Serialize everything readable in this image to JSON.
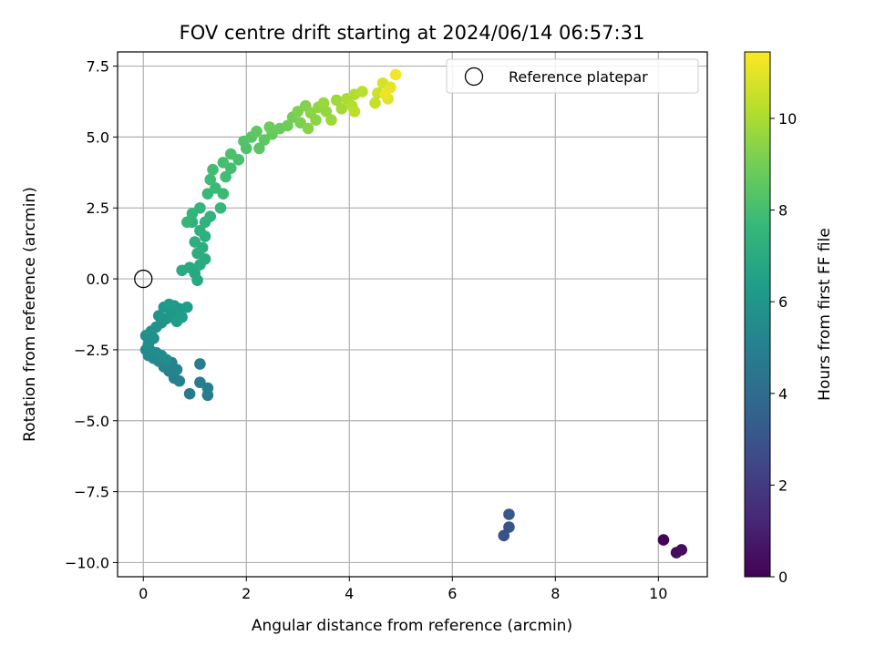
{
  "chart_data": {
    "type": "scatter",
    "title": "FOV centre drift starting at 2024/06/14 06:57:31",
    "xlabel": "Angular distance from reference (arcmin)",
    "ylabel": "Rotation from reference (arcmin)",
    "xlim": [
      -0.5,
      10.95
    ],
    "ylim": [
      -10.5,
      8.0
    ],
    "xticks": [
      0,
      2,
      4,
      6,
      8,
      10
    ],
    "xtick_labels": [
      "0",
      "2",
      "4",
      "6",
      "8",
      "10"
    ],
    "yticks": [
      7.5,
      5.0,
      2.5,
      0.0,
      -2.5,
      -5.0,
      -7.5,
      -10.0
    ],
    "ytick_labels": [
      "7.5",
      "5.0",
      "2.5",
      "0.0",
      "−2.5",
      "−5.0",
      "−7.5",
      "−10.0"
    ],
    "grid": true,
    "colormap": "viridis",
    "colorbar": {
      "label": "Hours from first FF file",
      "range": [
        0,
        11.45
      ],
      "ticks": [
        0,
        2,
        4,
        6,
        8,
        10
      ],
      "tick_labels": [
        "0",
        "2",
        "4",
        "6",
        "8",
        "10"
      ]
    },
    "legend": {
      "position": "upper right",
      "entries": [
        "Reference platepar"
      ]
    },
    "reference_point": {
      "x": 0.0,
      "y": 0.0,
      "label": "Reference platepar"
    },
    "points": [
      {
        "x": 10.1,
        "y": -9.2,
        "h": 0.1
      },
      {
        "x": 10.35,
        "y": -9.65,
        "h": 0.3
      },
      {
        "x": 10.45,
        "y": -9.55,
        "h": 0.4
      },
      {
        "x": 7.0,
        "y": -9.05,
        "h": 2.9
      },
      {
        "x": 7.1,
        "y": -8.75,
        "h": 3.0
      },
      {
        "x": 7.1,
        "y": -8.3,
        "h": 3.1
      },
      {
        "x": 0.9,
        "y": -4.05,
        "h": 4.7
      },
      {
        "x": 1.1,
        "y": -3.65,
        "h": 4.8
      },
      {
        "x": 1.25,
        "y": -4.1,
        "h": 4.8
      },
      {
        "x": 1.25,
        "y": -3.85,
        "h": 4.9
      },
      {
        "x": 1.1,
        "y": -3.0,
        "h": 4.9
      },
      {
        "x": 0.7,
        "y": -3.6,
        "h": 5.0
      },
      {
        "x": 0.6,
        "y": -3.5,
        "h": 5.0
      },
      {
        "x": 0.5,
        "y": -3.25,
        "h": 5.1
      },
      {
        "x": 0.55,
        "y": -2.95,
        "h": 5.1
      },
      {
        "x": 0.65,
        "y": -3.2,
        "h": 5.2
      },
      {
        "x": 0.4,
        "y": -3.1,
        "h": 5.2
      },
      {
        "x": 0.3,
        "y": -2.9,
        "h": 5.3
      },
      {
        "x": 0.2,
        "y": -2.8,
        "h": 5.3
      },
      {
        "x": 0.1,
        "y": -2.7,
        "h": 5.4
      },
      {
        "x": 0.05,
        "y": -2.5,
        "h": 5.4
      },
      {
        "x": 0.15,
        "y": -2.55,
        "h": 5.5
      },
      {
        "x": 0.25,
        "y": -2.6,
        "h": 5.5
      },
      {
        "x": 0.35,
        "y": -2.7,
        "h": 5.55
      },
      {
        "x": 0.45,
        "y": -2.85,
        "h": 5.6
      },
      {
        "x": 0.1,
        "y": -2.3,
        "h": 5.6
      },
      {
        "x": 0.2,
        "y": -2.1,
        "h": 5.65
      },
      {
        "x": 0.05,
        "y": -2.0,
        "h": 5.7
      },
      {
        "x": 0.15,
        "y": -1.85,
        "h": 5.75
      },
      {
        "x": 0.25,
        "y": -1.7,
        "h": 5.8
      },
      {
        "x": 0.35,
        "y": -1.55,
        "h": 5.85
      },
      {
        "x": 0.45,
        "y": -1.4,
        "h": 5.9
      },
      {
        "x": 0.3,
        "y": -1.3,
        "h": 5.95
      },
      {
        "x": 0.4,
        "y": -1.0,
        "h": 6.0
      },
      {
        "x": 0.55,
        "y": -1.2,
        "h": 6.05
      },
      {
        "x": 0.6,
        "y": -0.95,
        "h": 6.1
      },
      {
        "x": 0.7,
        "y": -1.05,
        "h": 6.15
      },
      {
        "x": 0.5,
        "y": -0.9,
        "h": 6.2
      },
      {
        "x": 0.75,
        "y": -1.35,
        "h": 6.25
      },
      {
        "x": 0.85,
        "y": -1.0,
        "h": 6.3
      },
      {
        "x": 0.65,
        "y": -1.5,
        "h": 6.3
      },
      {
        "x": 1.05,
        "y": -0.05,
        "h": 6.8
      },
      {
        "x": 1.0,
        "y": 0.2,
        "h": 6.85
      },
      {
        "x": 0.9,
        "y": 0.4,
        "h": 6.9
      },
      {
        "x": 0.75,
        "y": 0.3,
        "h": 6.95
      },
      {
        "x": 1.1,
        "y": 0.5,
        "h": 7.0
      },
      {
        "x": 1.2,
        "y": 0.7,
        "h": 7.05
      },
      {
        "x": 1.05,
        "y": 0.9,
        "h": 7.1
      },
      {
        "x": 1.15,
        "y": 1.1,
        "h": 7.15
      },
      {
        "x": 1.0,
        "y": 1.3,
        "h": 7.2
      },
      {
        "x": 1.2,
        "y": 1.5,
        "h": 7.25
      },
      {
        "x": 1.1,
        "y": 1.7,
        "h": 7.3
      },
      {
        "x": 0.95,
        "y": 2.0,
        "h": 7.35
      },
      {
        "x": 1.2,
        "y": 2.0,
        "h": 7.4
      },
      {
        "x": 1.3,
        "y": 2.2,
        "h": 7.45
      },
      {
        "x": 1.1,
        "y": 2.5,
        "h": 7.5
      },
      {
        "x": 0.95,
        "y": 2.3,
        "h": 7.55
      },
      {
        "x": 0.85,
        "y": 2.0,
        "h": 7.6
      },
      {
        "x": 1.5,
        "y": 2.5,
        "h": 7.65
      },
      {
        "x": 1.25,
        "y": 3.0,
        "h": 7.7
      },
      {
        "x": 1.4,
        "y": 3.2,
        "h": 7.75
      },
      {
        "x": 1.55,
        "y": 3.0,
        "h": 7.8
      },
      {
        "x": 1.3,
        "y": 3.5,
        "h": 7.85
      },
      {
        "x": 1.6,
        "y": 3.6,
        "h": 7.9
      },
      {
        "x": 1.35,
        "y": 3.85,
        "h": 7.95
      },
      {
        "x": 1.7,
        "y": 3.9,
        "h": 8.0
      },
      {
        "x": 1.55,
        "y": 4.1,
        "h": 8.05
      },
      {
        "x": 1.85,
        "y": 4.2,
        "h": 8.1
      },
      {
        "x": 1.7,
        "y": 4.4,
        "h": 8.15
      },
      {
        "x": 2.0,
        "y": 4.6,
        "h": 8.2
      },
      {
        "x": 1.95,
        "y": 4.85,
        "h": 8.3
      },
      {
        "x": 2.1,
        "y": 5.0,
        "h": 8.4
      },
      {
        "x": 2.25,
        "y": 4.6,
        "h": 8.5
      },
      {
        "x": 2.35,
        "y": 4.9,
        "h": 8.55
      },
      {
        "x": 2.2,
        "y": 5.2,
        "h": 8.6
      },
      {
        "x": 2.5,
        "y": 5.1,
        "h": 8.7
      },
      {
        "x": 2.65,
        "y": 5.3,
        "h": 8.8
      },
      {
        "x": 2.45,
        "y": 5.35,
        "h": 8.85
      },
      {
        "x": 2.8,
        "y": 5.4,
        "h": 8.9
      },
      {
        "x": 2.9,
        "y": 5.7,
        "h": 9.0
      },
      {
        "x": 3.05,
        "y": 5.5,
        "h": 9.1
      },
      {
        "x": 3.0,
        "y": 5.9,
        "h": 9.2
      },
      {
        "x": 3.15,
        "y": 6.1,
        "h": 9.3
      },
      {
        "x": 3.2,
        "y": 5.3,
        "h": 9.35
      },
      {
        "x": 3.35,
        "y": 5.6,
        "h": 9.4
      },
      {
        "x": 3.25,
        "y": 5.85,
        "h": 9.45
      },
      {
        "x": 3.4,
        "y": 6.05,
        "h": 9.5
      },
      {
        "x": 3.55,
        "y": 5.9,
        "h": 9.6
      },
      {
        "x": 3.5,
        "y": 6.2,
        "h": 9.7
      },
      {
        "x": 3.65,
        "y": 5.6,
        "h": 9.75
      },
      {
        "x": 3.75,
        "y": 6.3,
        "h": 9.8
      },
      {
        "x": 3.85,
        "y": 6.0,
        "h": 9.9
      },
      {
        "x": 3.95,
        "y": 6.35,
        "h": 10.0
      },
      {
        "x": 4.1,
        "y": 6.5,
        "h": 10.1
      },
      {
        "x": 4.05,
        "y": 6.1,
        "h": 10.15
      },
      {
        "x": 4.25,
        "y": 6.6,
        "h": 10.25
      },
      {
        "x": 4.1,
        "y": 5.9,
        "h": 10.3
      },
      {
        "x": 4.5,
        "y": 6.2,
        "h": 10.5
      },
      {
        "x": 4.55,
        "y": 6.55,
        "h": 10.6
      },
      {
        "x": 4.65,
        "y": 6.9,
        "h": 10.75
      },
      {
        "x": 4.75,
        "y": 6.35,
        "h": 10.9
      },
      {
        "x": 4.8,
        "y": 6.75,
        "h": 11.05
      },
      {
        "x": 4.7,
        "y": 6.5,
        "h": 11.15
      },
      {
        "x": 4.9,
        "y": 7.2,
        "h": 11.3
      }
    ]
  }
}
